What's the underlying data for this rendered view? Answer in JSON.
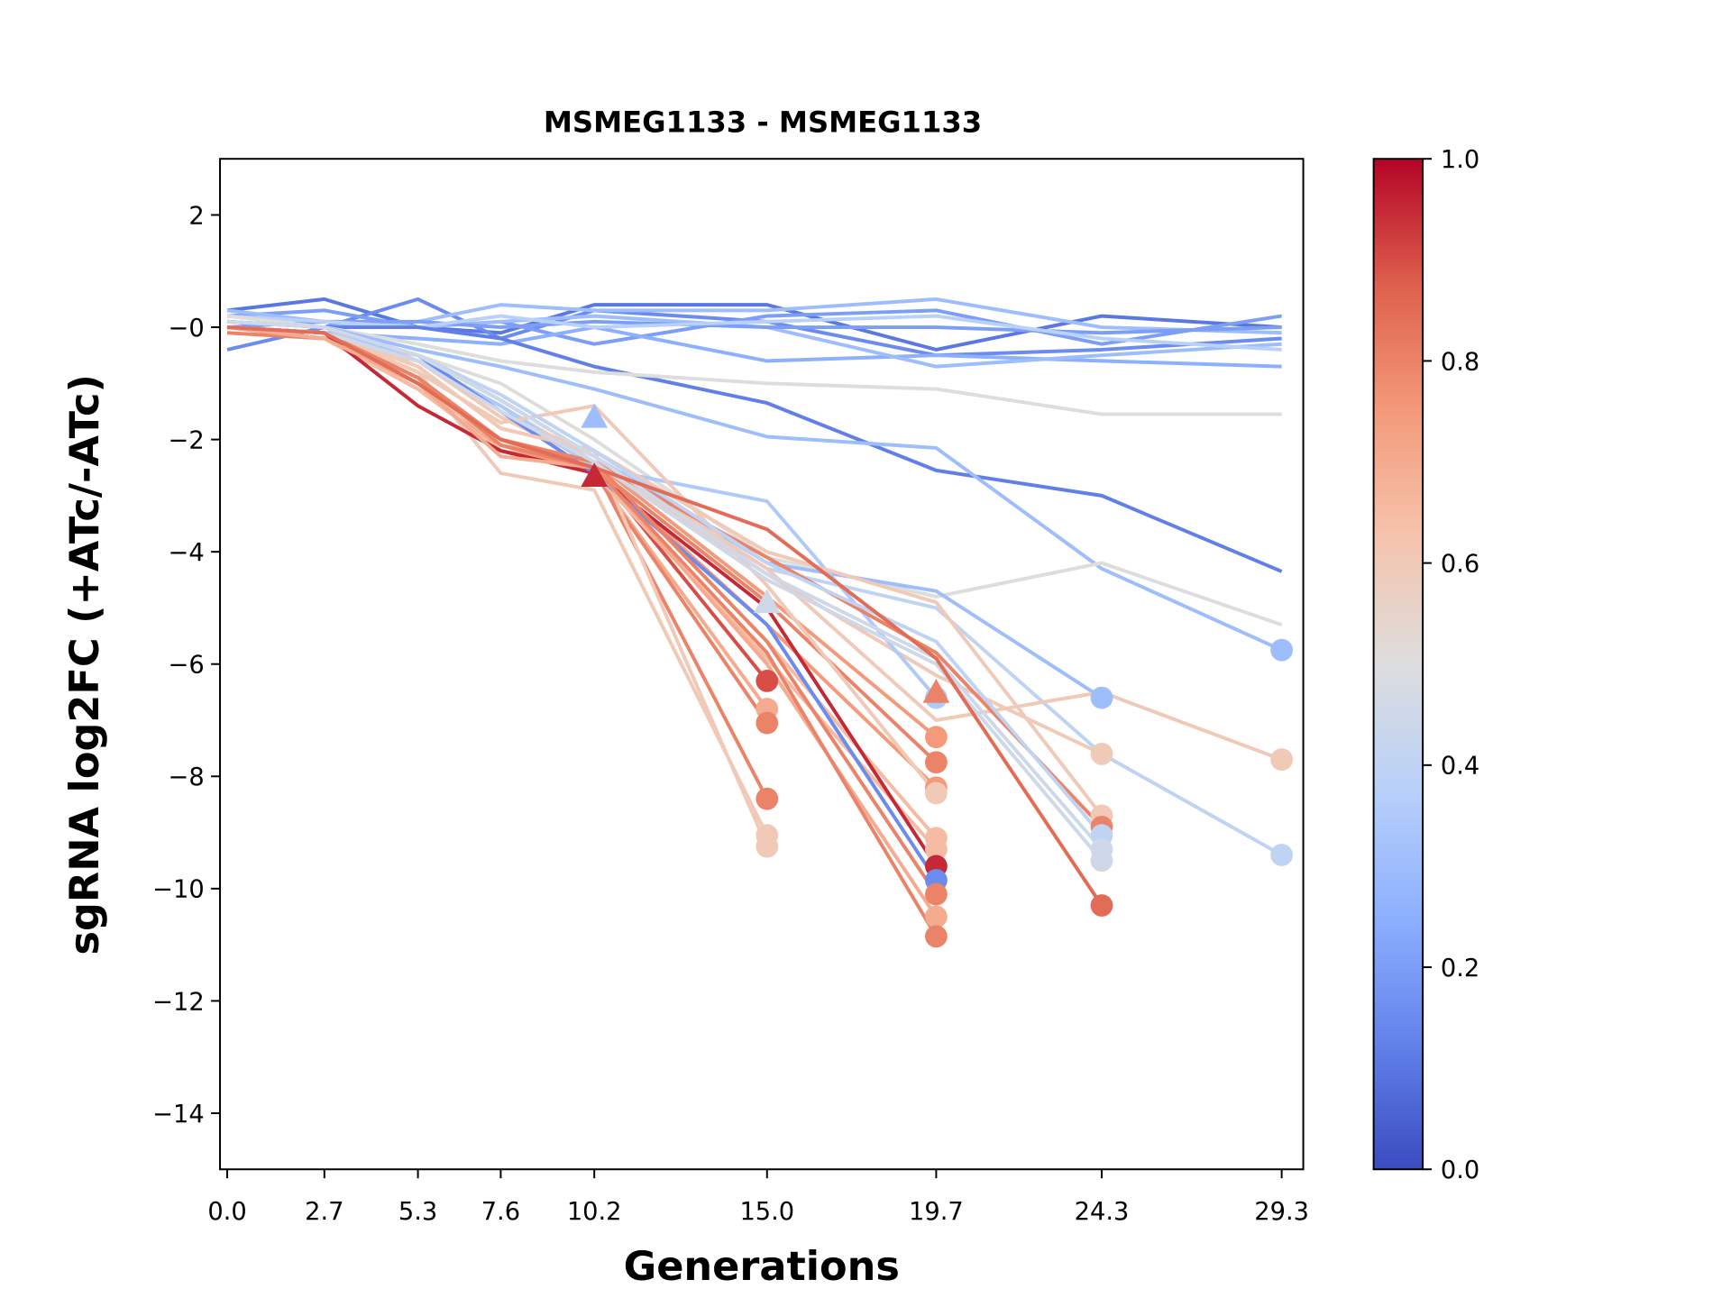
{
  "chart_data": {
    "type": "line",
    "title": "MSMEG1133 - MSMEG1133",
    "xlabel": "Generations",
    "ylabel": "sgRNA log2FC (+ATc/-ATc)",
    "x": [
      0.0,
      2.7,
      5.3,
      7.6,
      10.2,
      15.0,
      19.7,
      24.3,
      29.3
    ],
    "xtick_labels": [
      "0.0",
      "2.7",
      "5.3",
      "7.6",
      "10.2",
      "15.0",
      "19.7",
      "24.3",
      "29.3"
    ],
    "xlim": [
      -0.2,
      29.9
    ],
    "ylim": [
      -15,
      3
    ],
    "yticks": [
      2,
      0,
      -2,
      -4,
      -6,
      -8,
      -10,
      -12,
      -14
    ],
    "ytick_labels": [
      "2",
      "−0",
      "−2",
      "−4",
      "−6",
      "−8",
      "−10",
      "−12",
      "−14"
    ],
    "grid": false,
    "colorbar": {
      "colormap": "coolwarm",
      "range": [
        0.0,
        1.0
      ],
      "tick_labels": [
        "0.0",
        "0.2",
        "0.4",
        "0.6",
        "0.8",
        "1.0"
      ],
      "ticks": [
        0.0,
        0.2,
        0.4,
        0.6,
        0.8,
        1.0
      ]
    },
    "series": [
      {
        "c": 0.1,
        "y": [
          0.3,
          0.5,
          0.0,
          -0.1,
          0.4,
          0.4,
          -0.4,
          0.2,
          0.0
        ]
      },
      {
        "c": 0.15,
        "y": [
          -0.4,
          0.0,
          0.5,
          -0.2,
          0.3,
          0.1,
          -0.5,
          -0.4,
          -0.2
        ]
      },
      {
        "c": 0.2,
        "y": [
          0.2,
          0.3,
          0.0,
          0.1,
          -0.3,
          0.2,
          0.3,
          -0.3,
          0.2
        ]
      },
      {
        "c": 0.3,
        "y": [
          0.1,
          0.0,
          0.1,
          0.4,
          0.3,
          0.3,
          0.5,
          0.0,
          -0.1
        ]
      },
      {
        "c": 0.25,
        "y": [
          0.0,
          -0.1,
          -0.2,
          -0.3,
          0.0,
          -0.6,
          -0.5,
          -0.6,
          -0.7
        ]
      },
      {
        "c": 0.3,
        "y": [
          0.3,
          0.1,
          0.0,
          0.1,
          0.2,
          0.0,
          -0.7,
          -0.5,
          -0.3
        ]
      },
      {
        "c": 0.2,
        "y": [
          0.0,
          0.1,
          0.1,
          0.0,
          0.1,
          0.0,
          0.0,
          -0.1,
          0.0
        ]
      },
      {
        "c": 0.38,
        "y": [
          0.2,
          0.1,
          0.0,
          0.2,
          0.0,
          0.1,
          0.2,
          -0.2,
          -0.4
        ]
      },
      {
        "c": 0.12,
        "y": [
          0.1,
          0.0,
          0.0,
          -0.2,
          -0.7,
          -1.35,
          -2.55,
          -3.0,
          -4.35
        ]
      },
      {
        "c": 0.5,
        "y": [
          0.2,
          0.0,
          -0.3,
          -0.6,
          -0.8,
          -1.0,
          -1.1,
          -1.55,
          -1.55
        ]
      },
      {
        "c": 0.3,
        "y": [
          0.1,
          0.0,
          -0.4,
          -0.7,
          -1.1,
          -1.95,
          -2.15,
          -4.3,
          -5.75
        ],
        "end": "circle"
      },
      {
        "c": 0.5,
        "y": [
          0.0,
          -0.1,
          -0.5,
          -1.0,
          -2.0,
          -4.1,
          -4.8,
          -4.2,
          -5.3
        ]
      },
      {
        "c": 0.4,
        "y": [
          0.1,
          0.0,
          -0.6,
          -1.4,
          -2.4,
          -4.3,
          -5.0,
          -7.6,
          -9.4
        ],
        "end": "circle"
      },
      {
        "c": 0.3,
        "y": [
          0.0,
          -0.1,
          -0.5,
          -1.3,
          -2.3,
          -4.2,
          -4.7,
          -6.6,
          null
        ],
        "end": "circle"
      },
      {
        "c": 0.6,
        "y": [
          0.0,
          -0.2,
          -0.5,
          -1.5,
          -2.3,
          -4.3,
          -7.0,
          -6.5,
          -7.7
        ],
        "end": "circle"
      },
      {
        "c": 0.6,
        "y": [
          0.0,
          -0.2,
          -0.6,
          -1.6,
          -2.4,
          -4.4,
          -6.2,
          -7.6,
          null
        ],
        "end": "circle"
      },
      {
        "c": 0.9,
        "y": [
          0.0,
          -0.1,
          -1.0,
          -2.0,
          -2.5,
          -6.3,
          null,
          null,
          null
        ],
        "end": "circle"
      },
      {
        "c": 0.7,
        "y": [
          0.0,
          -0.1,
          -0.9,
          -2.1,
          -2.6,
          -6.8,
          null,
          null,
          null
        ],
        "end": "circle"
      },
      {
        "c": 0.8,
        "y": [
          0.0,
          -0.2,
          -1.1,
          -2.2,
          -2.6,
          -7.05,
          null,
          null,
          null
        ],
        "end": "circle"
      },
      {
        "c": 0.8,
        "y": [
          -0.1,
          -0.2,
          -1.0,
          -2.0,
          -2.5,
          -8.4,
          null,
          null,
          null
        ],
        "end": "circle"
      },
      {
        "c": 0.6,
        "y": [
          0.0,
          -0.1,
          -0.8,
          -2.6,
          -2.9,
          -9.05,
          null,
          null,
          null
        ],
        "end": "circle"
      },
      {
        "c": 0.6,
        "y": [
          0.1,
          0.0,
          -0.7,
          -1.8,
          -2.2,
          -9.25,
          null,
          null,
          null
        ],
        "end": "circle"
      },
      {
        "c": 0.35,
        "y": [
          0.1,
          0.0,
          -0.6,
          -1.4,
          -2.5,
          -3.1,
          -6.6,
          null,
          null
        ],
        "end": "circle"
      },
      {
        "c": 0.75,
        "y": [
          0.0,
          -0.1,
          -0.9,
          -2.0,
          -2.4,
          -4.8,
          -7.3,
          null,
          null
        ],
        "end": "circle"
      },
      {
        "c": 0.8,
        "y": [
          0.0,
          -0.2,
          -1.0,
          -2.1,
          -2.5,
          -4.9,
          -7.75,
          null,
          null
        ],
        "end": "circle"
      },
      {
        "c": 0.75,
        "y": [
          0.0,
          -0.1,
          -0.9,
          -2.2,
          -2.5,
          -5.3,
          -8.2,
          null,
          null
        ],
        "end": "circle"
      },
      {
        "c": 0.6,
        "y": [
          0.0,
          -0.1,
          -0.8,
          -1.7,
          -1.4,
          -4.6,
          -8.3,
          null,
          null
        ],
        "end": "circle"
      },
      {
        "c": 0.65,
        "y": [
          0.0,
          -0.1,
          -1.0,
          -2.1,
          -2.4,
          -5.6,
          -9.1,
          null,
          null
        ],
        "end": "circle"
      },
      {
        "c": 0.65,
        "y": [
          0.0,
          -0.2,
          -1.1,
          -2.2,
          -2.6,
          -5.9,
          -9.3,
          null,
          null
        ],
        "end": "circle"
      },
      {
        "c": 0.95,
        "y": [
          0.0,
          -0.1,
          -1.4,
          -2.2,
          -2.6,
          -5.0,
          -9.6,
          null,
          null
        ],
        "end": "circle"
      },
      {
        "c": 0.15,
        "y": [
          0.1,
          0.0,
          -0.5,
          -1.5,
          -2.6,
          -5.3,
          -9.85,
          null,
          null
        ],
        "end": "circle"
      },
      {
        "c": 0.8,
        "y": [
          0.0,
          -0.1,
          -1.0,
          -2.0,
          -2.4,
          -5.6,
          -10.1,
          null,
          null
        ],
        "end": "circle"
      },
      {
        "c": 0.7,
        "y": [
          0.0,
          -0.2,
          -1.0,
          -2.3,
          -2.5,
          -6.0,
          -10.5,
          null,
          null
        ],
        "end": "circle"
      },
      {
        "c": 0.8,
        "y": [
          0.0,
          -0.1,
          -0.9,
          -2.1,
          -2.5,
          -5.8,
          -10.85,
          null,
          null
        ],
        "end": "circle"
      },
      {
        "c": 0.6,
        "y": [
          0.0,
          -0.1,
          -0.7,
          -1.8,
          -2.2,
          -4.0,
          -4.9,
          -8.7,
          null
        ],
        "end": "circle"
      },
      {
        "c": 0.8,
        "y": [
          0.0,
          -0.1,
          -0.9,
          -2.0,
          -2.4,
          -4.1,
          -5.8,
          -8.9,
          null
        ],
        "end": "circle"
      },
      {
        "c": 0.4,
        "y": [
          0.1,
          0.0,
          -0.5,
          -1.2,
          -2.2,
          -4.2,
          -5.6,
          -9.05,
          null
        ],
        "end": "circle"
      },
      {
        "c": 0.45,
        "y": [
          0.1,
          0.0,
          -0.5,
          -1.3,
          -2.3,
          -4.4,
          -5.9,
          -9.3,
          null
        ],
        "end": "circle"
      },
      {
        "c": 0.45,
        "y": [
          0.0,
          -0.1,
          -0.6,
          -1.5,
          -2.4,
          -4.5,
          -6.0,
          -9.5,
          null
        ],
        "end": "circle"
      },
      {
        "c": 0.85,
        "y": [
          0.0,
          -0.1,
          -1.0,
          -2.0,
          -2.5,
          -3.6,
          -5.9,
          -10.3,
          null
        ],
        "end": "circle"
      }
    ],
    "triangle_markers": [
      {
        "x": 10.2,
        "y": -1.6,
        "c": 0.3
      },
      {
        "x": 10.2,
        "y": -2.65,
        "c": 0.95
      },
      {
        "x": 15.0,
        "y": -4.9,
        "c": 0.45
      },
      {
        "x": 19.7,
        "y": -6.5,
        "c": 0.8
      }
    ]
  }
}
